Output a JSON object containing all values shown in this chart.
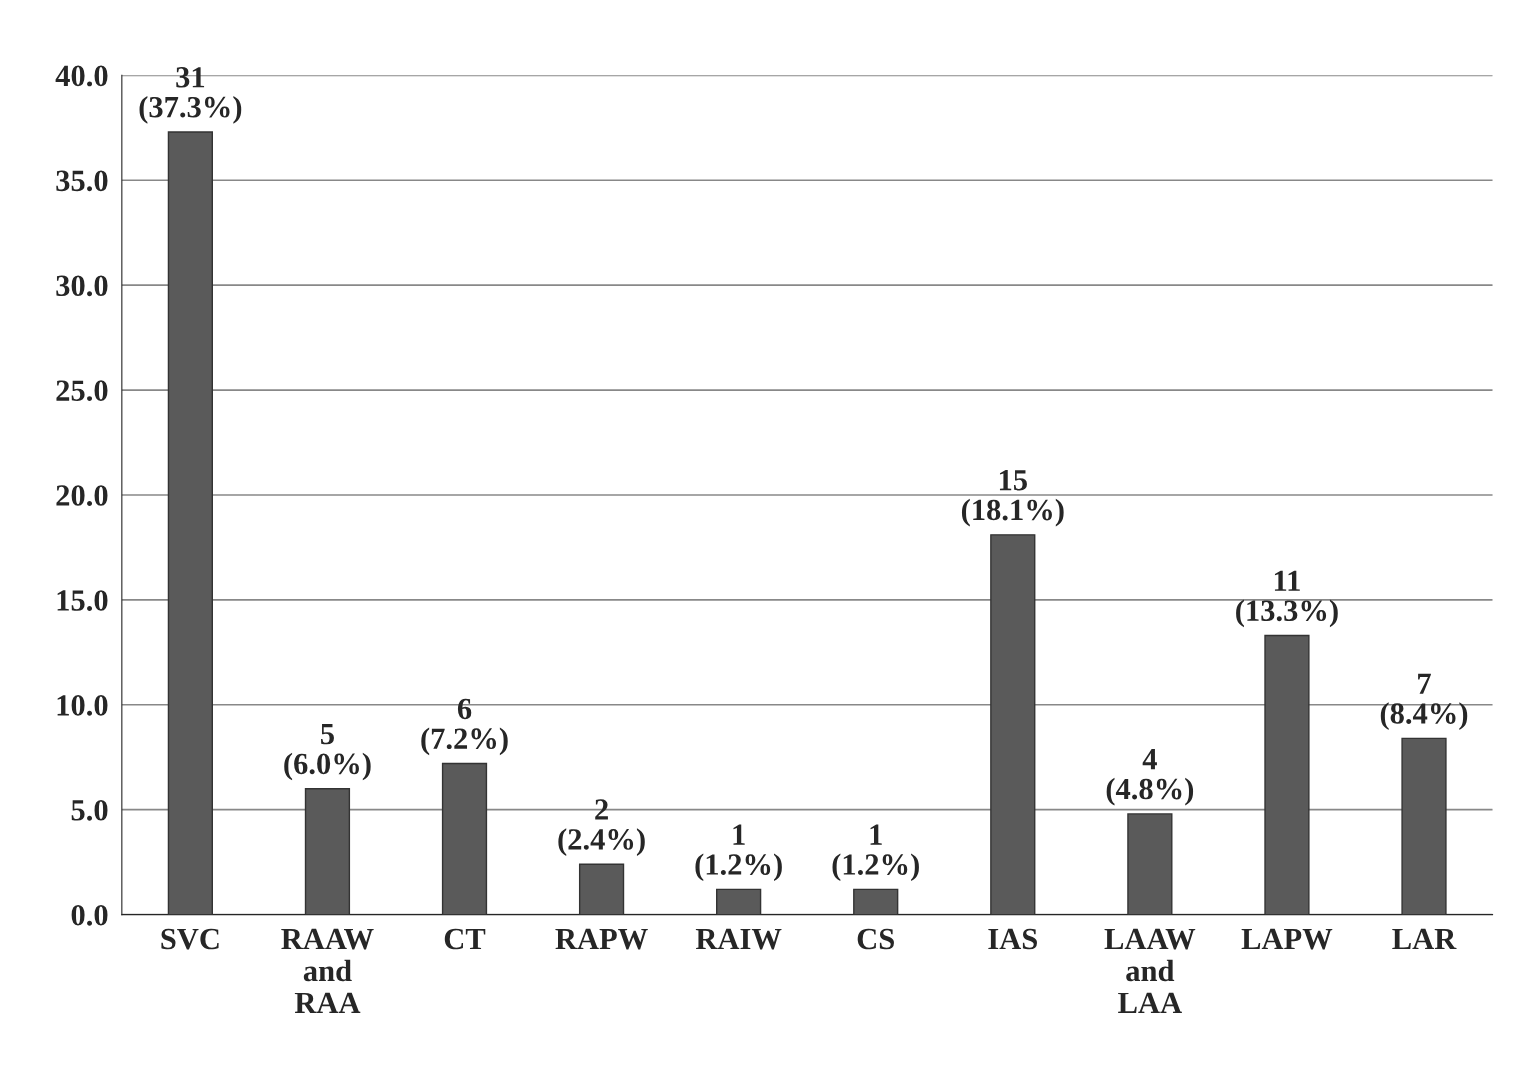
{
  "chart_data": {
    "type": "bar",
    "categories": [
      "SVC",
      "RAAW\nand\nRAA",
      "CT",
      "RAPW",
      "RAIW",
      "CS",
      "IAS",
      "LAAW\nand\nLAA",
      "LAPW",
      "LAR"
    ],
    "values": [
      37.3,
      6.0,
      7.2,
      2.4,
      1.2,
      1.2,
      18.1,
      4.8,
      13.3,
      8.4
    ],
    "value_labels": [
      "31\n(37.3%)",
      "5\n(6.0%)",
      "6\n(7.2%)",
      "2\n(2.4%)",
      "1\n(1.2%)",
      "1\n(1.2%)",
      "15\n(18.1%)",
      "4\n(4.8%)",
      "11\n(13.3%)",
      "7\n(8.4%)"
    ],
    "color": "#5a5a5a",
    "ylim": [
      0,
      40
    ],
    "yticks": [
      {
        "value": 0,
        "label": "0.0"
      },
      {
        "value": 5,
        "label": "5.0"
      },
      {
        "value": 10,
        "label": "10.0"
      },
      {
        "value": 15,
        "label": "15.0"
      },
      {
        "value": 20,
        "label": "20.0"
      },
      {
        "value": 25,
        "label": "25.0"
      },
      {
        "value": 30,
        "label": "30.0"
      },
      {
        "value": 35,
        "label": "35.0"
      },
      {
        "value": 40,
        "label": "40.0"
      }
    ],
    "grid": "y"
  }
}
